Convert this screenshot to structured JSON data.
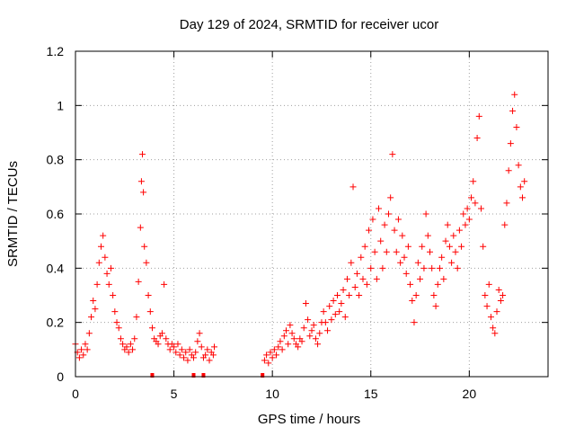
{
  "chart_data": {
    "type": "scatter",
    "title": "Day 129 of 2024, SRMTID for receiver ucor",
    "xlabel": "GPS time / hours",
    "ylabel": "SRMTID / TECUs",
    "xlim": [
      0,
      24
    ],
    "ylim": [
      0,
      1.2
    ],
    "x_ticks": [
      0,
      5,
      10,
      15,
      20
    ],
    "x_tick_labels": [
      "0",
      "5",
      "10",
      "15",
      "20"
    ],
    "y_ticks": [
      0,
      0.2,
      0.4,
      0.6,
      0.8,
      1.0,
      1.2
    ],
    "y_tick_labels": [
      "0",
      "0.2",
      "0.4",
      "0.6",
      "0.8",
      "1",
      "1.2"
    ],
    "grid": true,
    "marker": "plus",
    "series": [
      {
        "name": "SRMTID",
        "color": "#ff0000",
        "points": [
          [
            0.0,
            0.12
          ],
          [
            0.1,
            0.09
          ],
          [
            0.2,
            0.07
          ],
          [
            0.3,
            0.1
          ],
          [
            0.4,
            0.08
          ],
          [
            0.5,
            0.12
          ],
          [
            0.6,
            0.1
          ],
          [
            0.7,
            0.16
          ],
          [
            0.8,
            0.22
          ],
          [
            0.9,
            0.28
          ],
          [
            1.0,
            0.25
          ],
          [
            1.1,
            0.34
          ],
          [
            1.2,
            0.42
          ],
          [
            1.3,
            0.48
          ],
          [
            1.4,
            0.52
          ],
          [
            1.5,
            0.44
          ],
          [
            1.6,
            0.38
          ],
          [
            1.7,
            0.34
          ],
          [
            1.8,
            0.4
          ],
          [
            1.9,
            0.3
          ],
          [
            2.0,
            0.24
          ],
          [
            2.1,
            0.2
          ],
          [
            2.2,
            0.18
          ],
          [
            2.3,
            0.14
          ],
          [
            2.4,
            0.12
          ],
          [
            2.5,
            0.1
          ],
          [
            2.6,
            0.11
          ],
          [
            2.7,
            0.09
          ],
          [
            2.8,
            0.12
          ],
          [
            2.9,
            0.1
          ],
          [
            3.0,
            0.14
          ],
          [
            3.1,
            0.22
          ],
          [
            3.2,
            0.35
          ],
          [
            3.3,
            0.55
          ],
          [
            3.35,
            0.72
          ],
          [
            3.4,
            0.82
          ],
          [
            3.45,
            0.68
          ],
          [
            3.5,
            0.48
          ],
          [
            3.6,
            0.42
          ],
          [
            3.7,
            0.3
          ],
          [
            3.8,
            0.24
          ],
          [
            3.9,
            0.18
          ],
          [
            4.0,
            0.14
          ],
          [
            4.1,
            0.13
          ],
          [
            4.2,
            0.12
          ],
          [
            4.3,
            0.15
          ],
          [
            4.4,
            0.16
          ],
          [
            4.5,
            0.34
          ],
          [
            4.6,
            0.14
          ],
          [
            4.7,
            0.12
          ],
          [
            4.8,
            0.1
          ],
          [
            4.9,
            0.12
          ],
          [
            5.0,
            0.11
          ],
          [
            5.1,
            0.09
          ],
          [
            5.2,
            0.12
          ],
          [
            5.3,
            0.08
          ],
          [
            5.4,
            0.1
          ],
          [
            5.5,
            0.07
          ],
          [
            5.6,
            0.09
          ],
          [
            5.7,
            0.06
          ],
          [
            5.8,
            0.1
          ],
          [
            5.9,
            0.08
          ],
          [
            6.0,
            0.07
          ],
          [
            6.1,
            0.09
          ],
          [
            6.2,
            0.13
          ],
          [
            6.3,
            0.16
          ],
          [
            6.4,
            0.11
          ],
          [
            6.5,
            0.07
          ],
          [
            6.6,
            0.08
          ],
          [
            6.7,
            0.1
          ],
          [
            6.8,
            0.06
          ],
          [
            6.9,
            0.09
          ],
          [
            7.0,
            0.08
          ],
          [
            7.05,
            0.11
          ],
          [
            9.6,
            0.06
          ],
          [
            9.7,
            0.08
          ],
          [
            9.8,
            0.05
          ],
          [
            9.9,
            0.09
          ],
          [
            10.0,
            0.07
          ],
          [
            10.1,
            0.1
          ],
          [
            10.2,
            0.08
          ],
          [
            10.3,
            0.11
          ],
          [
            10.4,
            0.13
          ],
          [
            10.5,
            0.1
          ],
          [
            10.6,
            0.15
          ],
          [
            10.7,
            0.17
          ],
          [
            10.8,
            0.12
          ],
          [
            10.9,
            0.19
          ],
          [
            11.0,
            0.16
          ],
          [
            11.1,
            0.14
          ],
          [
            11.2,
            0.12
          ],
          [
            11.3,
            0.11
          ],
          [
            11.4,
            0.14
          ],
          [
            11.5,
            0.13
          ],
          [
            11.6,
            0.18
          ],
          [
            11.7,
            0.27
          ],
          [
            11.8,
            0.21
          ],
          [
            11.9,
            0.15
          ],
          [
            12.0,
            0.17
          ],
          [
            12.1,
            0.19
          ],
          [
            12.2,
            0.14
          ],
          [
            12.3,
            0.12
          ],
          [
            12.4,
            0.16
          ],
          [
            12.5,
            0.2
          ],
          [
            12.6,
            0.24
          ],
          [
            12.7,
            0.2
          ],
          [
            12.8,
            0.17
          ],
          [
            12.9,
            0.26
          ],
          [
            13.0,
            0.21
          ],
          [
            13.1,
            0.28
          ],
          [
            13.2,
            0.23
          ],
          [
            13.3,
            0.3
          ],
          [
            13.4,
            0.24
          ],
          [
            13.5,
            0.27
          ],
          [
            13.6,
            0.32
          ],
          [
            13.7,
            0.22
          ],
          [
            13.8,
            0.36
          ],
          [
            13.9,
            0.3
          ],
          [
            14.0,
            0.42
          ],
          [
            14.1,
            0.7
          ],
          [
            14.2,
            0.33
          ],
          [
            14.3,
            0.38
          ],
          [
            14.4,
            0.3
          ],
          [
            14.5,
            0.44
          ],
          [
            14.6,
            0.36
          ],
          [
            14.7,
            0.48
          ],
          [
            14.8,
            0.34
          ],
          [
            14.9,
            0.54
          ],
          [
            15.0,
            0.4
          ],
          [
            15.1,
            0.58
          ],
          [
            15.2,
            0.46
          ],
          [
            15.3,
            0.36
          ],
          [
            15.4,
            0.62
          ],
          [
            15.5,
            0.5
          ],
          [
            15.6,
            0.4
          ],
          [
            15.7,
            0.56
          ],
          [
            15.8,
            0.46
          ],
          [
            15.9,
            0.6
          ],
          [
            16.0,
            0.66
          ],
          [
            16.1,
            0.82
          ],
          [
            16.2,
            0.54
          ],
          [
            16.3,
            0.46
          ],
          [
            16.4,
            0.58
          ],
          [
            16.5,
            0.42
          ],
          [
            16.6,
            0.52
          ],
          [
            16.7,
            0.44
          ],
          [
            16.8,
            0.38
          ],
          [
            16.9,
            0.48
          ],
          [
            17.0,
            0.34
          ],
          [
            17.1,
            0.28
          ],
          [
            17.2,
            0.2
          ],
          [
            17.3,
            0.3
          ],
          [
            17.4,
            0.42
          ],
          [
            17.5,
            0.36
          ],
          [
            17.6,
            0.48
          ],
          [
            17.7,
            0.4
          ],
          [
            17.8,
            0.6
          ],
          [
            17.9,
            0.52
          ],
          [
            18.0,
            0.46
          ],
          [
            18.1,
            0.4
          ],
          [
            18.2,
            0.3
          ],
          [
            18.3,
            0.26
          ],
          [
            18.4,
            0.34
          ],
          [
            18.5,
            0.4
          ],
          [
            18.6,
            0.44
          ],
          [
            18.7,
            0.36
          ],
          [
            18.8,
            0.5
          ],
          [
            18.9,
            0.56
          ],
          [
            19.0,
            0.48
          ],
          [
            19.1,
            0.42
          ],
          [
            19.2,
            0.52
          ],
          [
            19.3,
            0.46
          ],
          [
            19.4,
            0.4
          ],
          [
            19.5,
            0.54
          ],
          [
            19.6,
            0.48
          ],
          [
            19.7,
            0.6
          ],
          [
            19.8,
            0.56
          ],
          [
            19.9,
            0.62
          ],
          [
            20.0,
            0.58
          ],
          [
            20.1,
            0.66
          ],
          [
            20.2,
            0.72
          ],
          [
            20.3,
            0.64
          ],
          [
            20.4,
            0.88
          ],
          [
            20.5,
            0.96
          ],
          [
            20.6,
            0.62
          ],
          [
            20.7,
            0.48
          ],
          [
            20.8,
            0.3
          ],
          [
            20.9,
            0.26
          ],
          [
            21.0,
            0.34
          ],
          [
            21.1,
            0.22
          ],
          [
            21.2,
            0.18
          ],
          [
            21.3,
            0.16
          ],
          [
            21.4,
            0.24
          ],
          [
            21.5,
            0.32
          ],
          [
            21.6,
            0.28
          ],
          [
            21.7,
            0.3
          ],
          [
            21.8,
            0.56
          ],
          [
            21.9,
            0.64
          ],
          [
            22.0,
            0.76
          ],
          [
            22.1,
            0.86
          ],
          [
            22.2,
            0.98
          ],
          [
            22.3,
            1.04
          ],
          [
            22.4,
            0.92
          ],
          [
            22.5,
            0.78
          ],
          [
            22.6,
            0.7
          ],
          [
            22.7,
            0.66
          ],
          [
            22.8,
            0.72
          ]
        ]
      }
    ],
    "rug_x": [
      3.9,
      6.0,
      6.5,
      9.5
    ]
  }
}
